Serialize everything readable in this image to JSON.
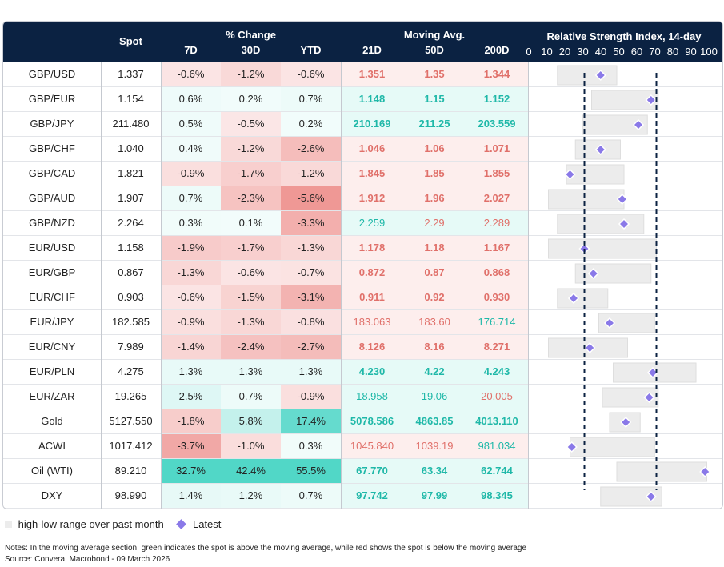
{
  "header": {
    "spot": "Spot",
    "pct_change": "% Change",
    "d7": "7D",
    "d30": "30D",
    "ytd": "YTD",
    "moving_avg": "Moving Avg.",
    "ma21": "21D",
    "ma50": "50D",
    "ma200": "200D",
    "rsi_title": "Relative Strength Index, 14-day"
  },
  "chart_data": {
    "type": "table",
    "rsi_ticks": [
      "0",
      "10",
      "20",
      "30",
      "40",
      "50",
      "60",
      "70",
      "80",
      "90",
      "100"
    ],
    "rsi_xlim": [
      0,
      100
    ],
    "rsi_reference_lines": [
      30,
      70
    ],
    "colors": {
      "header_bg": "#0b2242",
      "positive_text": "#1fb8a8",
      "negative_text": "#e0706a",
      "range_bar": "#ececec",
      "latest_marker": "#8a79e8",
      "ref_line": "#0b2242"
    },
    "rows": [
      {
        "name": "GBP/USD",
        "spot": "1.337",
        "d7": "-0.6%",
        "d30": "-1.2%",
        "ytd": "-0.6%",
        "ma21": "1.351",
        "ma50": "1.35",
        "ma200": "1.344",
        "ma_bold": true,
        "ma_dir": [
          "below",
          "below",
          "below"
        ],
        "rsi_low": 15,
        "rsi_high": 48,
        "rsi_latest": 39
      },
      {
        "name": "GBP/EUR",
        "spot": "1.154",
        "d7": "0.6%",
        "d30": "0.2%",
        "ytd": "0.7%",
        "ma21": "1.148",
        "ma50": "1.15",
        "ma200": "1.152",
        "ma_bold": true,
        "ma_dir": [
          "above",
          "above",
          "above"
        ],
        "rsi_low": 34,
        "rsi_high": 71,
        "rsi_latest": 67
      },
      {
        "name": "GBP/JPY",
        "spot": "211.480",
        "d7": "0.5%",
        "d30": "-0.5%",
        "ytd": "0.2%",
        "ma21": "210.169",
        "ma50": "211.25",
        "ma200": "203.559",
        "ma_bold": true,
        "ma_dir": [
          "above",
          "above",
          "above"
        ],
        "rsi_low": 29,
        "rsi_high": 65,
        "rsi_latest": 60
      },
      {
        "name": "GBP/CHF",
        "spot": "1.040",
        "d7": "0.4%",
        "d30": "-1.2%",
        "ytd": "-2.6%",
        "ma21": "1.046",
        "ma50": "1.06",
        "ma200": "1.071",
        "ma_bold": true,
        "ma_dir": [
          "below",
          "below",
          "below"
        ],
        "rsi_low": 25,
        "rsi_high": 50,
        "rsi_latest": 39
      },
      {
        "name": "GBP/CAD",
        "spot": "1.821",
        "d7": "-0.9%",
        "d30": "-1.7%",
        "ytd": "-1.2%",
        "ma21": "1.845",
        "ma50": "1.85",
        "ma200": "1.855",
        "ma_bold": true,
        "ma_dir": [
          "below",
          "below",
          "below"
        ],
        "rsi_low": 20,
        "rsi_high": 52,
        "rsi_latest": 22
      },
      {
        "name": "GBP/AUD",
        "spot": "1.907",
        "d7": "0.7%",
        "d30": "-2.3%",
        "ytd": "-5.6%",
        "ma21": "1.912",
        "ma50": "1.96",
        "ma200": "2.027",
        "ma_bold": true,
        "ma_dir": [
          "below",
          "below",
          "below"
        ],
        "rsi_low": 10,
        "rsi_high": 52,
        "rsi_latest": 51
      },
      {
        "name": "GBP/NZD",
        "spot": "2.264",
        "d7": "0.3%",
        "d30": "0.1%",
        "ytd": "-3.3%",
        "ma21": "2.259",
        "ma50": "2.29",
        "ma200": "2.289",
        "ma_bold": false,
        "ma_dir": [
          "above",
          "below",
          "below"
        ],
        "rsi_low": 15,
        "rsi_high": 63,
        "rsi_latest": 52
      },
      {
        "name": "EUR/USD",
        "spot": "1.158",
        "d7": "-1.9%",
        "d30": "-1.7%",
        "ytd": "-1.3%",
        "ma21": "1.178",
        "ma50": "1.18",
        "ma200": "1.167",
        "ma_bold": true,
        "ma_dir": [
          "below",
          "below",
          "below"
        ],
        "rsi_low": 10,
        "rsi_high": 70,
        "rsi_latest": 30
      },
      {
        "name": "EUR/GBP",
        "spot": "0.867",
        "d7": "-1.3%",
        "d30": "-0.6%",
        "ytd": "-0.7%",
        "ma21": "0.872",
        "ma50": "0.87",
        "ma200": "0.868",
        "ma_bold": true,
        "ma_dir": [
          "below",
          "below",
          "below"
        ],
        "rsi_low": 25,
        "rsi_high": 67,
        "rsi_latest": 35
      },
      {
        "name": "EUR/CHF",
        "spot": "0.903",
        "d7": "-0.6%",
        "d30": "-1.5%",
        "ytd": "-3.1%",
        "ma21": "0.911",
        "ma50": "0.92",
        "ma200": "0.930",
        "ma_bold": true,
        "ma_dir": [
          "below",
          "below",
          "below"
        ],
        "rsi_low": 15,
        "rsi_high": 43,
        "rsi_latest": 24
      },
      {
        "name": "EUR/JPY",
        "spot": "182.585",
        "d7": "-0.9%",
        "d30": "-1.3%",
        "ytd": "-0.8%",
        "ma21": "183.063",
        "ma50": "183.60",
        "ma200": "176.714",
        "ma_bold": false,
        "ma_dir": [
          "below",
          "below",
          "above"
        ],
        "rsi_low": 38,
        "rsi_high": 69,
        "rsi_latest": 44
      },
      {
        "name": "EUR/CNY",
        "spot": "7.989",
        "d7": "-1.4%",
        "d30": "-2.4%",
        "ytd": "-2.7%",
        "ma21": "8.126",
        "ma50": "8.16",
        "ma200": "8.271",
        "ma_bold": true,
        "ma_dir": [
          "below",
          "below",
          "below"
        ],
        "rsi_low": 10,
        "rsi_high": 54,
        "rsi_latest": 33
      },
      {
        "name": "EUR/PLN",
        "spot": "4.275",
        "d7": "1.3%",
        "d30": "1.3%",
        "ytd": "1.3%",
        "ma21": "4.230",
        "ma50": "4.22",
        "ma200": "4.243",
        "ma_bold": true,
        "ma_dir": [
          "above",
          "above",
          "above"
        ],
        "rsi_low": 46,
        "rsi_high": 92,
        "rsi_latest": 68
      },
      {
        "name": "EUR/ZAR",
        "spot": "19.265",
        "d7": "2.5%",
        "d30": "0.7%",
        "ytd": "-0.9%",
        "ma21": "18.958",
        "ma50": "19.06",
        "ma200": "20.005",
        "ma_bold": false,
        "ma_dir": [
          "above",
          "above",
          "below"
        ],
        "rsi_low": 40,
        "rsi_high": 71,
        "rsi_latest": 66
      },
      {
        "name": "Gold",
        "spot": "5127.550",
        "d7": "-1.8%",
        "d30": "5.8%",
        "ytd": "17.4%",
        "ma21": "5078.586",
        "ma50": "4863.85",
        "ma200": "4013.110",
        "ma_bold": true,
        "ma_dir": [
          "above",
          "above",
          "above"
        ],
        "rsi_low": 44,
        "rsi_high": 61,
        "rsi_latest": 53
      },
      {
        "name": "ACWI",
        "spot": "1017.412",
        "d7": "-3.7%",
        "d30": "-1.0%",
        "ytd": "0.3%",
        "ma21": "1045.840",
        "ma50": "1039.19",
        "ma200": "981.034",
        "ma_bold": false,
        "ma_dir": [
          "below",
          "below",
          "above"
        ],
        "rsi_low": 22,
        "rsi_high": 69,
        "rsi_latest": 23
      },
      {
        "name": "Oil (WTI)",
        "spot": "89.210",
        "d7": "32.7%",
        "d30": "42.4%",
        "ytd": "55.5%",
        "ma21": "67.770",
        "ma50": "63.34",
        "ma200": "62.744",
        "ma_bold": true,
        "ma_dir": [
          "above",
          "above",
          "above"
        ],
        "rsi_low": 48,
        "rsi_high": 98,
        "rsi_latest": 97
      },
      {
        "name": "DXY",
        "spot": "98.990",
        "d7": "1.4%",
        "d30": "1.2%",
        "ytd": "0.7%",
        "ma21": "97.742",
        "ma50": "97.99",
        "ma200": "98.345",
        "ma_bold": true,
        "ma_dir": [
          "above",
          "above",
          "above"
        ],
        "rsi_low": 39,
        "rsi_high": 73,
        "rsi_latest": 67
      }
    ]
  },
  "legend": {
    "range_label": "high-low range over past month",
    "latest_label": "Latest"
  },
  "notes": {
    "line1": "Notes: In the moving average section, green indicates the spot is above the moving average, while red shows the spot is below the moving average",
    "line2": "Source: Convera, Macrobond - 09 March 2026"
  }
}
